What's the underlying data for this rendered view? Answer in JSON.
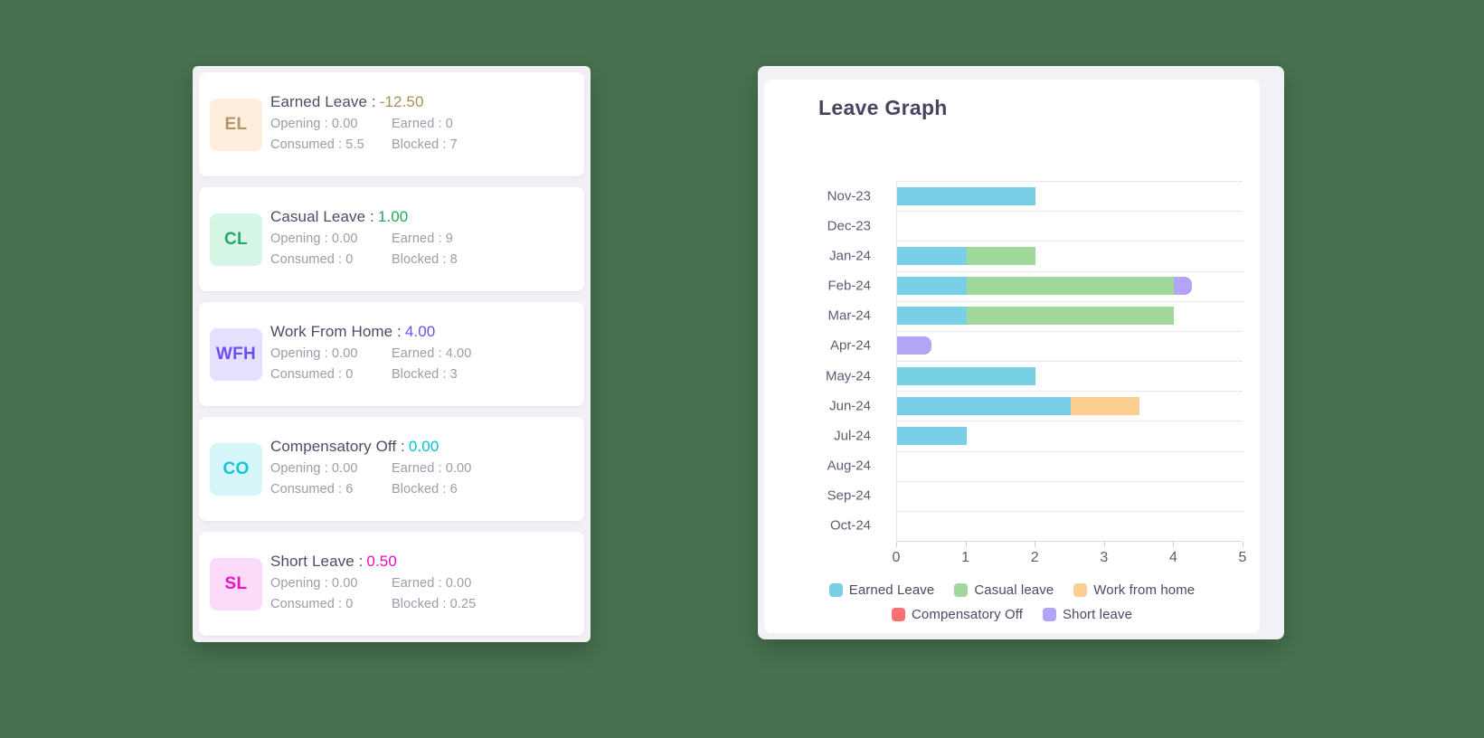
{
  "theme": {
    "page_bg": "#47714f",
    "panel_bg": "#f1f0f4",
    "card_bg": "#ffffff",
    "grid_color": "#e9e9ee",
    "axis_color": "#d9d9e0",
    "axis_text_color": "#5c5c73",
    "muted_text_color": "#9c9caa"
  },
  "leave_cards": [
    {
      "code": "EL",
      "name_label": "Earned Leave :",
      "value": "-12.50",
      "accent": "#aa8d58",
      "badge_bg": "#fdeedc",
      "badge_color": "#b29468",
      "stats": [
        "Opening : 0.00",
        "Earned : 0",
        "Consumed : 5.5",
        "Blocked : 7"
      ]
    },
    {
      "code": "CL",
      "name_label": "Casual Leave :",
      "value": "1.00",
      "accent": "#23a45f",
      "badge_bg": "#d6f7e6",
      "badge_color": "#27a667",
      "stats": [
        "Opening : 0.00",
        "Earned : 9",
        "Consumed : 0",
        "Blocked : 8"
      ]
    },
    {
      "code": "WFH",
      "name_label": "Work From Home :",
      "value": "4.00",
      "accent": "#6b4df2",
      "badge_bg": "#e5e0fb",
      "badge_color": "#6b4df2",
      "stats": [
        "Opening : 0.00",
        "Earned : 4.00",
        "Consumed : 0",
        "Blocked : 3"
      ]
    },
    {
      "code": "CO",
      "name_label": "Compensatory Off :",
      "value": "0.00",
      "accent": "#00c3d9",
      "badge_bg": "#d7f6f9",
      "badge_color": "#0fc6d8",
      "stats": [
        "Opening : 0.00",
        "Earned : 0.00",
        "Consumed : 6",
        "Blocked : 6"
      ]
    },
    {
      "code": "SL",
      "name_label": "Short Leave :",
      "value": "0.50",
      "accent": "#e50cc4",
      "badge_bg": "#fbdbf7",
      "badge_color": "#e713c8",
      "stats": [
        "Opening : 0.00",
        "Earned : 0.00",
        "Consumed : 0",
        "Blocked : 0.25"
      ]
    }
  ],
  "chart_data": {
    "type": "bar",
    "orientation": "horizontal",
    "stacked": true,
    "title": "Leave Graph",
    "categories": [
      "Nov-23",
      "Dec-23",
      "Jan-24",
      "Feb-24",
      "Mar-24",
      "Apr-24",
      "May-24",
      "Jun-24",
      "Jul-24",
      "Aug-24",
      "Sep-24",
      "Oct-24"
    ],
    "series": [
      {
        "name": "Earned Leave",
        "color": "#79d0e6",
        "values": [
          2,
          0,
          1,
          1,
          1,
          0,
          2,
          2.5,
          1,
          0,
          0,
          0
        ]
      },
      {
        "name": "Casual leave",
        "color": "#a0d79b",
        "values": [
          0,
          0,
          1,
          3,
          3,
          0,
          0,
          0,
          0,
          0,
          0,
          0
        ]
      },
      {
        "name": "Work from home",
        "color": "#fccd90",
        "values": [
          0,
          0,
          0,
          0,
          0,
          0,
          0,
          1,
          0,
          0,
          0,
          0
        ]
      },
      {
        "name": "Compensatory Off",
        "color": "#f97070",
        "values": [
          0,
          0,
          0,
          0,
          0,
          0,
          0,
          0,
          0,
          0,
          0,
          0
        ]
      },
      {
        "name": "Short leave",
        "color": "#b3a4f6",
        "values": [
          0,
          0,
          0,
          0.25,
          0,
          0.5,
          0,
          0,
          0,
          0,
          0,
          0
        ]
      }
    ],
    "xlim": [
      0,
      5
    ],
    "xticks": [
      "0",
      "1",
      "2",
      "3",
      "4",
      "5"
    ],
    "grid": "horizontal-category-lines",
    "legend_position": "bottom"
  }
}
